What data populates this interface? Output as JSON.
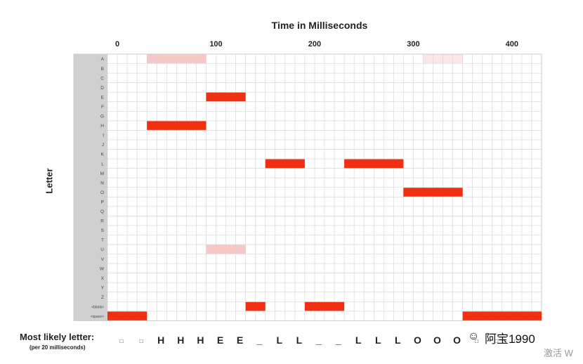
{
  "chart_data": {
    "type": "heatmap",
    "title": "Time in Milliseconds",
    "ylabel": "Letter",
    "x_ticks": [
      0,
      100,
      200,
      300,
      400
    ],
    "xlim": [
      -10,
      430
    ],
    "time_step_ms": 20,
    "letters": [
      "A",
      "B",
      "C",
      "D",
      "E",
      "F",
      "G",
      "H",
      "I",
      "J",
      "K",
      "L",
      "M",
      "N",
      "O",
      "P",
      "Q",
      "R",
      "S",
      "T",
      "U",
      "V",
      "W",
      "X",
      "Y",
      "Z",
      "<blank>",
      "<space>"
    ],
    "cells": [
      {
        "letter": "A",
        "start": 30,
        "end": 90,
        "probability": 0.25
      },
      {
        "letter": "A",
        "start": 310,
        "end": 350,
        "probability": 0.12
      },
      {
        "letter": "H",
        "start": 30,
        "end": 90,
        "probability": 1.0
      },
      {
        "letter": "E",
        "start": 90,
        "end": 130,
        "probability": 1.0
      },
      {
        "letter": "U",
        "start": 90,
        "end": 130,
        "probability": 0.25
      },
      {
        "letter": "L",
        "start": 150,
        "end": 190,
        "probability": 1.0
      },
      {
        "letter": "L",
        "start": 230,
        "end": 290,
        "probability": 1.0
      },
      {
        "letter": "O",
        "start": 290,
        "end": 350,
        "probability": 1.0
      },
      {
        "letter": "<blank>",
        "start": 130,
        "end": 150,
        "probability": 1.0
      },
      {
        "letter": "<blank>",
        "start": 190,
        "end": 230,
        "probability": 1.0
      },
      {
        "letter": "<space>",
        "start": -10,
        "end": 30,
        "probability": 1.0
      },
      {
        "letter": "<space>",
        "start": 350,
        "end": 430,
        "probability": 1.0
      }
    ],
    "most_likely_label": "Most likely letter:",
    "most_likely_sublabel": "(per 20 milliseconds)",
    "most_likely_sequence": [
      "□",
      "□",
      "H",
      "H",
      "H",
      "E",
      "E",
      "_",
      "L",
      "L",
      "_",
      "_",
      "L",
      "L",
      "L",
      "O",
      "O",
      "O",
      "□",
      "□",
      "□"
    ],
    "colors": {
      "high": "#f03010",
      "low": "#f6c8c8",
      "grid": "#d8d8d8",
      "label_bg": "#d0d0d0"
    }
  },
  "watermark": {
    "icon": "wechat-icon",
    "name": "阿宝1990",
    "sub": "激活 W"
  }
}
